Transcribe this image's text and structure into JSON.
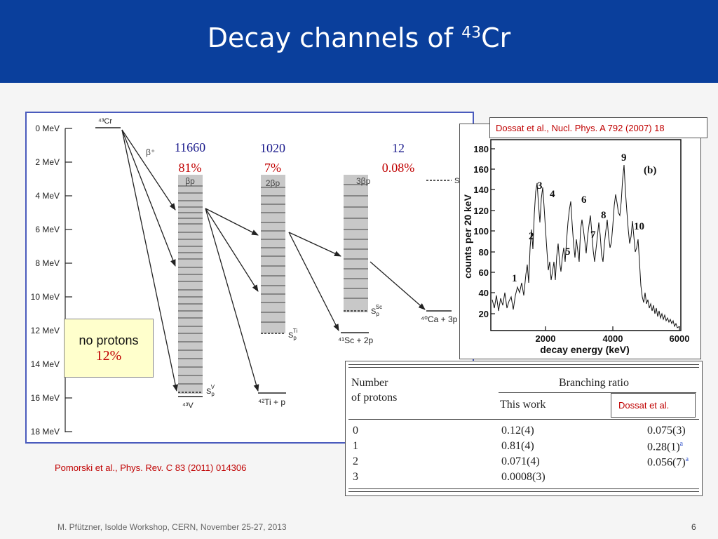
{
  "slide": {
    "title_prefix": "Decay channels of ",
    "title_mass": "43",
    "title_element": "Cr",
    "footer": "M. Pfützner, Isolde Workshop, CERN, November 25-27, 2013",
    "page_number": "6"
  },
  "level_scheme": {
    "y_tick_labels": [
      "0 MeV",
      "2 MeV",
      "4 MeV",
      "6 MeV",
      "8 MeV",
      "10 MeV",
      "12 MeV",
      "14 MeV",
      "16 MeV",
      "18 MeV"
    ],
    "parent": "⁴³Cr",
    "beta_label": "β⁺",
    "channels": [
      {
        "label": "βp",
        "count": "11660",
        "percent": "81%"
      },
      {
        "label": "2βp",
        "count": "1020",
        "percent": "7%"
      },
      {
        "label": "3βp",
        "count": "12",
        "percent": "0.08%"
      }
    ],
    "nuclei": {
      "v": "⁴³V",
      "ti_p": "⁴²Ti + p",
      "sc_2p": "⁴¹Sc + 2p",
      "ca_3p": "⁴⁰Ca + 3p",
      "sp": "S",
      "sp_sub": "p",
      "sp_v": "V",
      "sp_ti": "Ti",
      "sp_sc": "Sc"
    },
    "no_protons_label": "no protons",
    "no_protons_percent": "12%",
    "reference": "Pomorski et al., Phys. Rev.  C 83 (2011) 014306"
  },
  "spectrum": {
    "reference": "Dossat et al., Nucl. Phys. A 792 (2007) 18",
    "panel_label": "(b)",
    "ylabel": "counts per 20 keV",
    "xlabel": "decay energy (keV)",
    "y_ticks": [
      "20",
      "40",
      "60",
      "80",
      "100",
      "120",
      "140",
      "160",
      "180"
    ],
    "x_ticks": [
      "2000",
      "4000",
      "6000"
    ],
    "peak_labels": [
      "1",
      "2",
      "3",
      "4",
      "5",
      "6",
      "7",
      "8",
      "9",
      "10"
    ]
  },
  "branching_table": {
    "col1_header_line1": "Number",
    "col1_header_line2": "of protons",
    "group_header": "Branching ratio",
    "sub_header_this_work": "This work",
    "sub_header_dossat": "Dossat et al.",
    "rows": [
      {
        "n": "0",
        "this_work": "0.12(4)",
        "dossat": "0.075(3)",
        "note": ""
      },
      {
        "n": "1",
        "this_work": "0.81(4)",
        "dossat": "0.28(1)",
        "note": "a"
      },
      {
        "n": "2",
        "this_work": "0.071(4)",
        "dossat": "0.056(7)",
        "note": "a"
      },
      {
        "n": "3",
        "this_work": "0.0008(3)",
        "dossat": "",
        "note": ""
      }
    ]
  }
}
